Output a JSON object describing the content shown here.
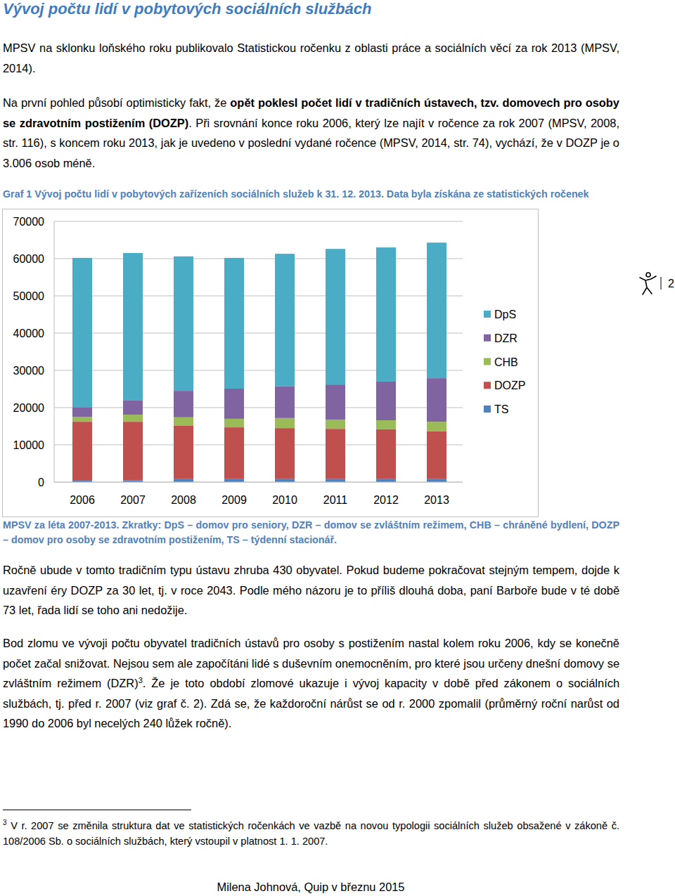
{
  "heading": "Vývoj počtu lidí v pobytových sociálních službách",
  "paragraphs": [
    [
      {
        "text": "MPSV na sklonku loňského roku publikovalo Statistickou ročenku z oblasti práce a sociálních věcí za rok 2013 (MPSV, 2014).",
        "style": "normal"
      }
    ],
    [
      {
        "text": "Na první pohled působí optimisticky fakt, že ",
        "style": "normal"
      },
      {
        "text": "opět poklesl počet lidí v tradičních ústavech, tzv. domovech pro osoby se zdravotním postižením (DOZP)",
        "style": "bold"
      },
      {
        "text": ". Při srovnání konce roku 2006, který lze najít v ročence za rok 2007 (MPSV, 2008, str. 116), s koncem roku 2013, jak je uvedeno v poslední vydané ročence (MPSV, 2014, str. 74), vychází, že v DOZP je o 3.006 osob méně.",
        "style": "normal"
      }
    ],
    [
      {
        "text": "Ročně ubude v tomto tradičním typu ústavu zhruba 430 obyvatel. Pokud budeme pokračovat stejným tempem, dojde k uzavření éry DOZP za 30 let, tj. v roce 2043. Podle mého názoru je to příliš dlouhá doba, paní Barboře bude v té době 73 let, řada lidí se toho ani nedožije.",
        "style": "normal"
      }
    ],
    [
      {
        "text": "Bod zlomu ve vývoji počtu obyvatel tradičních ústavů pro osoby s postižením nastal kolem roku 2006, kdy se konečně počet začal snižovat. Nejsou sem ale započítáni lidé s duševním onemocněním, pro které jsou určeny dnešní domovy se zvláštním režimem (DZR)",
        "style": "normal"
      },
      {
        "text": "3",
        "style": "sup"
      },
      {
        "text": ". Že je toto období zlomové ukazuje i vývoj kapacity v době před zákonem o sociálních službách, tj. před r. 2007 (viz graf č. 2). Zdá se, že každoroční nárůst se od r. 2000 zpomalil (průměrný roční narůst od 1990 do 2006 byl necelých 240 lůžek ročně).",
        "style": "normal"
      }
    ]
  ],
  "caption_top": "Graf 1 Vývoj počtu lidí v pobytových zařízeních sociálních služeb k 31. 12. 2013. Data byla získána ze statistických ročenek",
  "chart_data": {
    "type": "bar",
    "stacked": true,
    "categories": [
      "2006",
      "2007",
      "2008",
      "2009",
      "2010",
      "2011",
      "2012",
      "2013"
    ],
    "series": [
      {
        "name": "TS",
        "color": "#4f81bd",
        "values": [
          400,
          500,
          800,
          800,
          800,
          800,
          800,
          800
        ]
      },
      {
        "name": "DOZP",
        "color": "#c0504d",
        "values": [
          15800,
          15700,
          14300,
          13900,
          13700,
          13500,
          13400,
          12800
        ]
      },
      {
        "name": "CHB",
        "color": "#9bbb59",
        "values": [
          1350,
          1900,
          2300,
          2300,
          2700,
          2500,
          2400,
          2600
        ]
      },
      {
        "name": "DZR",
        "color": "#8064a2",
        "values": [
          2450,
          3800,
          7100,
          8100,
          8500,
          9400,
          10400,
          11700
        ]
      },
      {
        "name": "DpS",
        "color": "#4bacc6",
        "values": [
          40200,
          39600,
          36100,
          35100,
          35600,
          36400,
          36000,
          36400
        ]
      }
    ],
    "ylim": [
      0,
      70000
    ],
    "yticks": [
      0,
      10000,
      20000,
      30000,
      40000,
      50000,
      60000,
      70000
    ],
    "grid": true,
    "legend": "right"
  },
  "caption_bottom": "MPSV za léta 2007-2013. Zkratky: DpS – domov pro seniory, DZR – domov se zvláštním režimem, CHB – chráněné bydlení, DOZP – domov pro osoby se zdravotním postižením, TS – týdenní stacionář.",
  "footnote": [
    {
      "text": "3",
      "style": "sup"
    },
    {
      "text": " V r. 2007 se změnila struktura dat ve statistických ročenkách ve vazbě na novou typologii sociálních služeb obsažené v zákoně č. 108/2006 Sb. o sociálních službách, který vstoupil v platnost 1. 1. 2007.",
      "style": "normal"
    }
  ],
  "footer": "Milena Johnová, Quip v březnu 2015",
  "page_number": 2
}
